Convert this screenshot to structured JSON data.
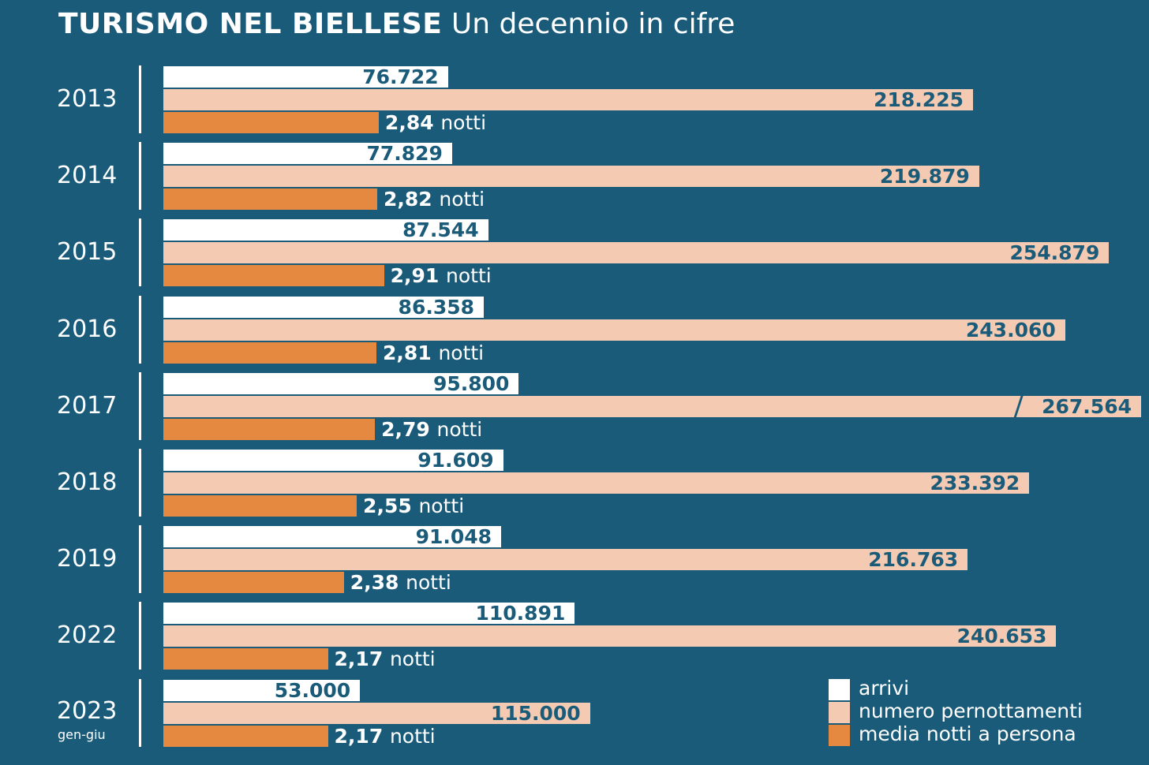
{
  "title": {
    "main": "TURISMO NEL BIELLESE",
    "sub": "Un decennio in cifre"
  },
  "colors": {
    "background": "#1a5b7a",
    "arrivi": "#ffffff",
    "pernottamenti": "#f4cbb2",
    "notti": "#e4893f"
  },
  "legend": [
    {
      "key": "arrivi",
      "label": "arrivi"
    },
    {
      "key": "pernottamenti",
      "label": "numero pernottamenti"
    },
    {
      "key": "notti",
      "label": "media notti a persona"
    }
  ],
  "unit_notti": "notti",
  "chart_data": {
    "type": "bar",
    "orientation": "horizontal",
    "title": "TURISMO NEL BIELLESE",
    "subtitle": "Un decennio in cifre",
    "categories": [
      "2013",
      "2014",
      "2015",
      "2016",
      "2017",
      "2018",
      "2019",
      "2022",
      "2023"
    ],
    "category_sublabels": [
      "",
      "",
      "",
      "",
      "",
      "",
      "",
      "",
      "gen-giu"
    ],
    "series": [
      {
        "name": "arrivi",
        "values": [
          76722,
          77829,
          87544,
          86358,
          95800,
          91609,
          91048,
          110891,
          53000
        ],
        "labels": [
          "76.722",
          "77.829",
          "87.544",
          "86.358",
          "95.800",
          "91.609",
          "91.048",
          "110.891",
          "53.000"
        ]
      },
      {
        "name": "numero pernottamenti",
        "values": [
          218225,
          219879,
          254879,
          243060,
          267564,
          233392,
          216763,
          240653,
          115000
        ],
        "labels": [
          "218.225",
          "219.879",
          "254.879",
          "243.060",
          "267.564",
          "233.392",
          "216.763",
          "240.653",
          "115.000"
        ]
      },
      {
        "name": "media notti a persona",
        "values": [
          2.84,
          2.82,
          2.91,
          2.81,
          2.79,
          2.55,
          2.38,
          2.17,
          2.17
        ],
        "labels": [
          "2,84",
          "2,82",
          "2,91",
          "2,81",
          "2,79",
          "2,55",
          "2,38",
          "2,17",
          "2,17"
        ]
      }
    ],
    "legend_position": "bottom-right",
    "grid": false
  }
}
